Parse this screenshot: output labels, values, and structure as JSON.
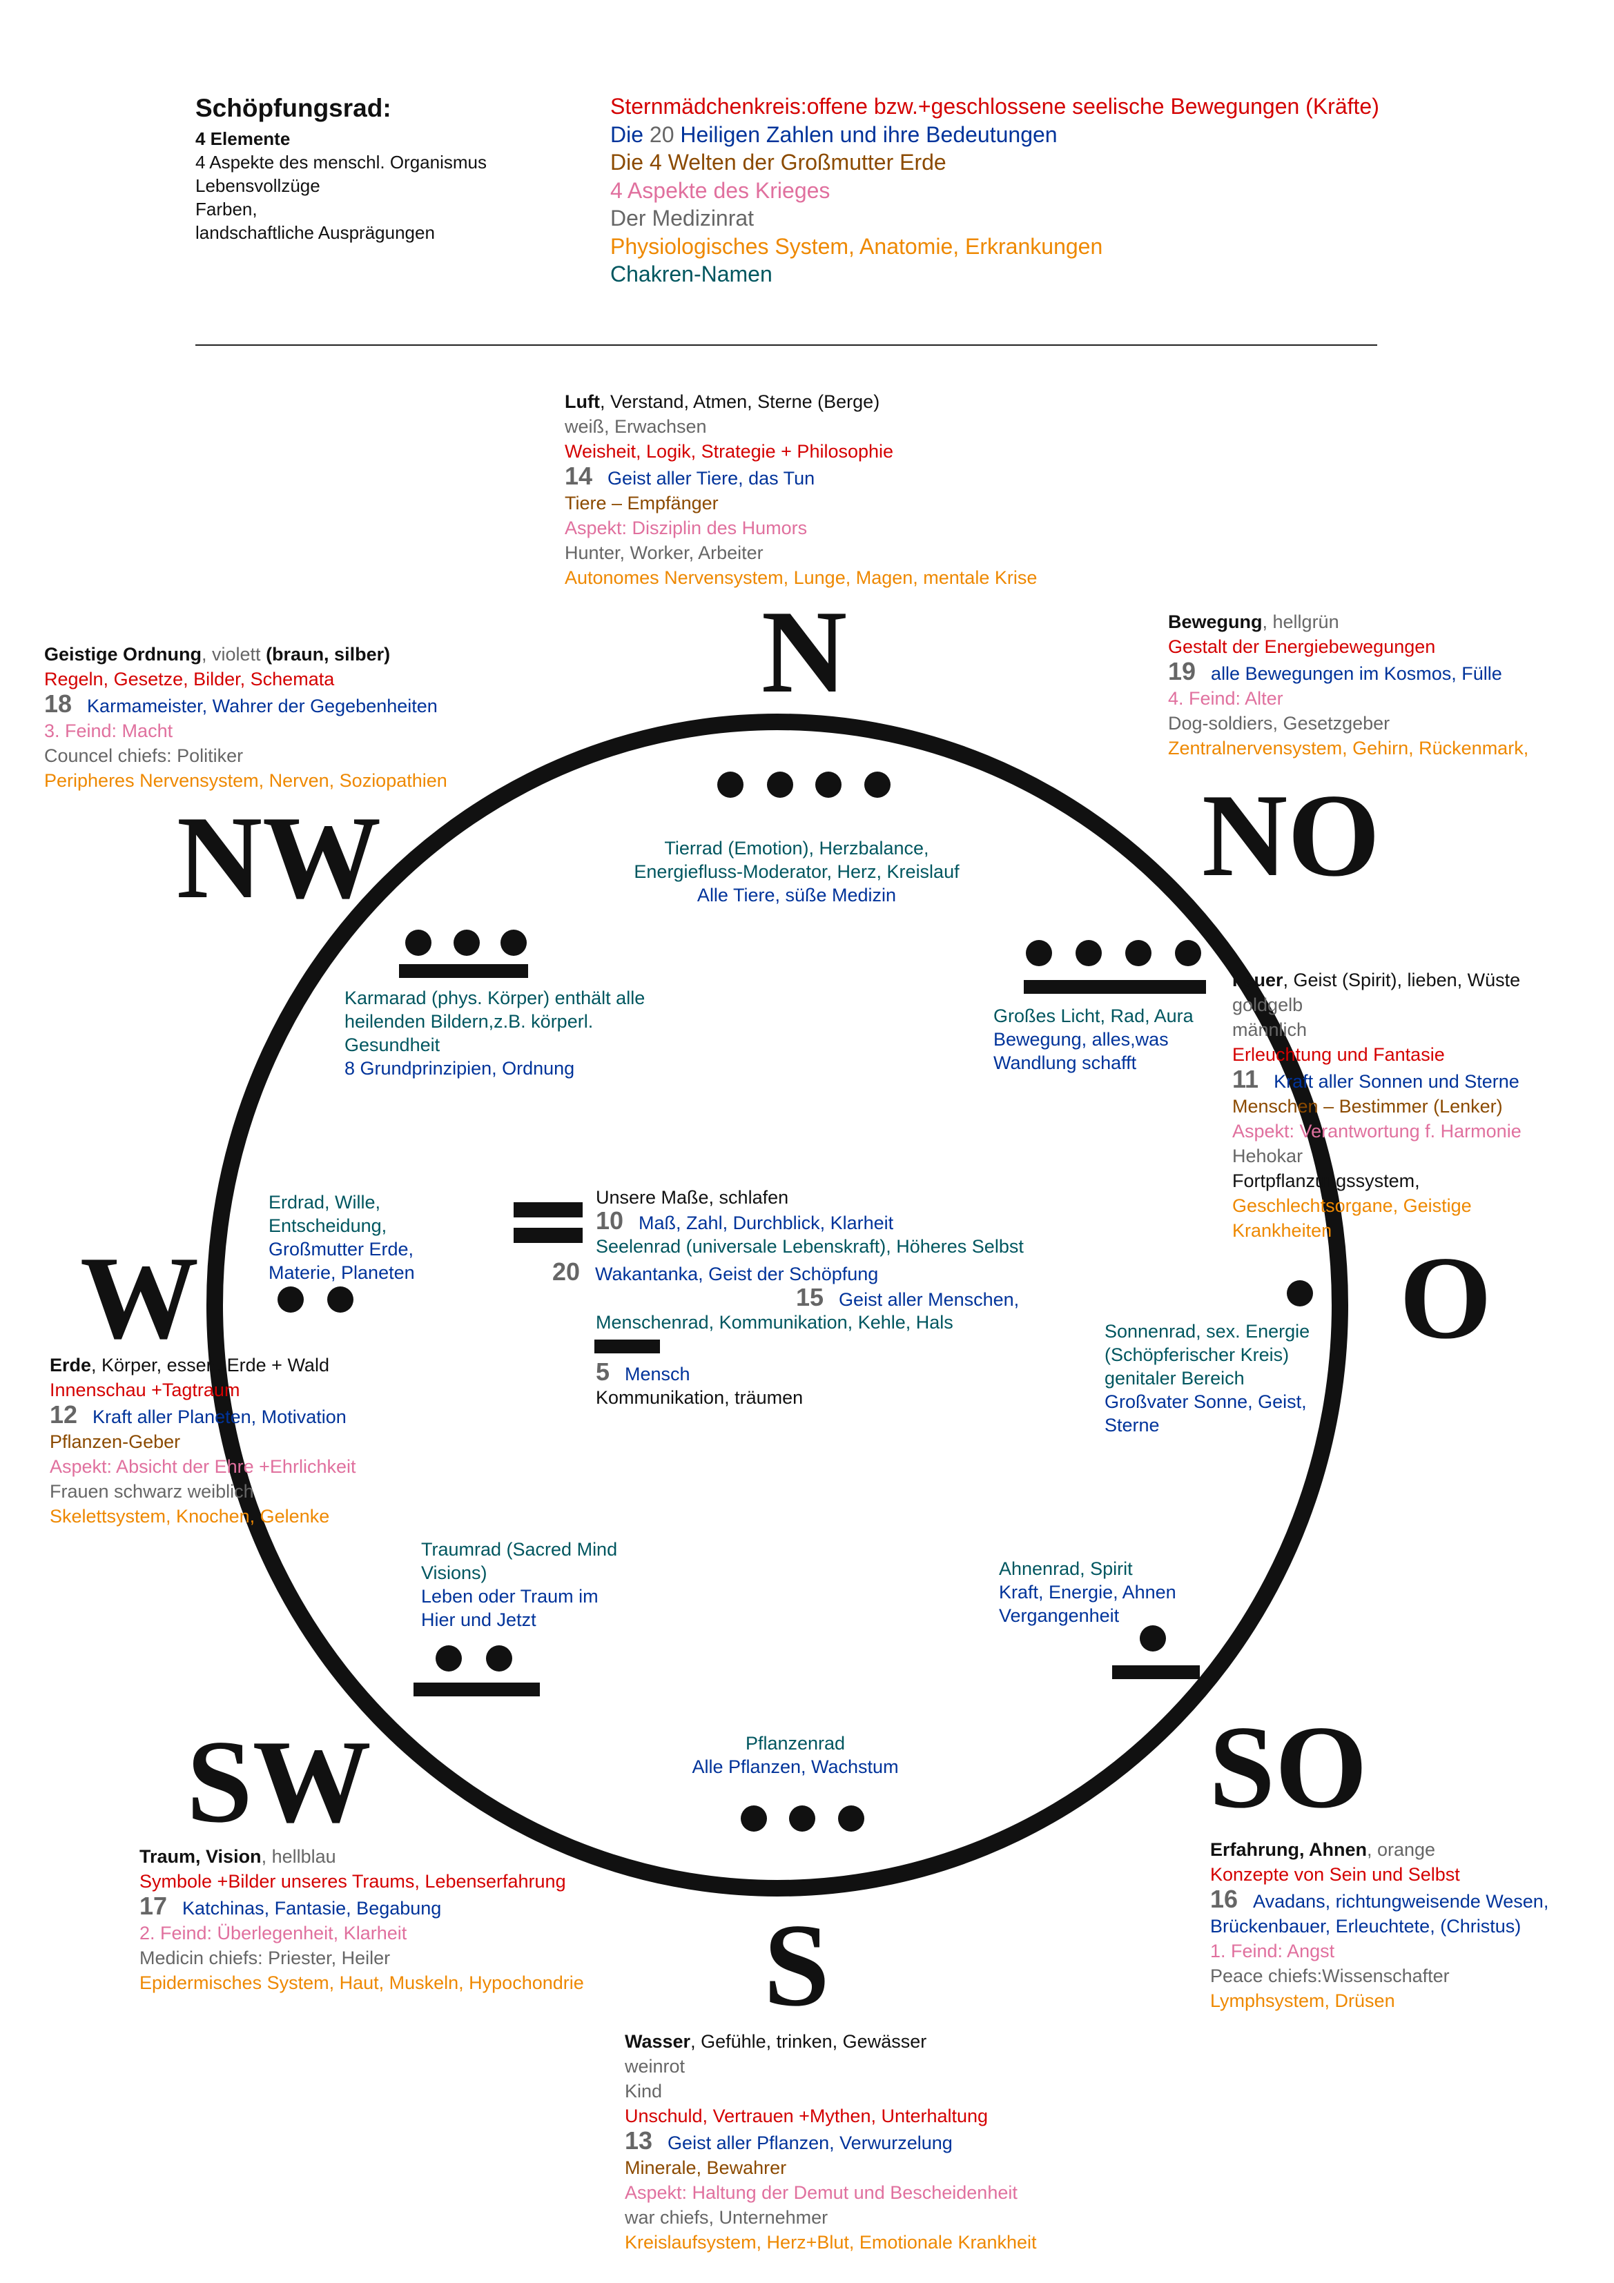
{
  "header": {
    "title": "Schöpfungsrad:",
    "left_lines": [
      "4 Elemente",
      "4 Aspekte des menschl.  Organismus",
      "Lebensvollzüge",
      "Farben,",
      "landschaftliche Ausprägungen"
    ],
    "legend": [
      [
        [
          "Sternmädchenkreis:offene bzw.+geschlossene seelische Bewegungen (Kräfte)",
          "r"
        ]
      ],
      [
        [
          "Die ",
          "b"
        ],
        [
          "20",
          "g"
        ],
        [
          " Heiligen Zahlen und ihre Bedeutungen",
          "b"
        ]
      ],
      [
        [
          "Die 4 Welten der Großmutter Erde",
          "br"
        ]
      ],
      [
        [
          "4 Aspekte des Krieges",
          "p"
        ]
      ],
      [
        [
          "Der Medizinrat",
          "g"
        ]
      ],
      [
        [
          "Physiologisches System, Anatomie, Erkrankungen",
          "o"
        ]
      ],
      [
        [
          "Chakren-Namen",
          "t"
        ]
      ]
    ]
  },
  "colors": {
    "k": "#111111",
    "g": "#666666",
    "r": "#d40000",
    "b": "#00339a",
    "br": "#8b4a00",
    "p": "#e0709e",
    "o": "#ee8800",
    "t": "#00565f"
  },
  "directions": {
    "n": "N",
    "nw": "NW",
    "no": "NO",
    "w": "W",
    "o": "O",
    "sw": "SW",
    "so": "SO",
    "s": "S"
  },
  "blocks": {
    "luft": [
      [
        [
          "Luft",
          "k",
          1
        ],
        [
          ", Verstand, Atmen, Sterne (Berge)",
          "k"
        ]
      ],
      [
        [
          "weiß, Erwachsen",
          "g"
        ]
      ],
      [
        [
          "Weisheit, Logik, Strategie + Philosophie",
          "r"
        ]
      ],
      [
        [
          "14",
          "n"
        ],
        [
          "Geist aller Tiere, das Tun",
          "b"
        ]
      ],
      [
        [
          "Tiere – Empfänger",
          "br"
        ]
      ],
      [
        [
          "Aspekt: Disziplin des Humors",
          "p"
        ]
      ],
      [
        [
          "Hunter, Worker, Arbeiter",
          "g"
        ]
      ],
      [
        [
          "Autonomes Nervensystem, Lunge, Magen, mentale Krise",
          "o"
        ]
      ]
    ],
    "geistige": [
      [
        [
          "Geistige Ordnung",
          "k",
          1
        ],
        [
          ", violett ",
          "g"
        ],
        [
          "(braun, silber)",
          "k",
          1
        ]
      ],
      [
        [
          "Regeln, Gesetze, Bilder, Schemata",
          "r"
        ]
      ],
      [
        [
          "18",
          "n"
        ],
        [
          "Karmameister, Wahrer der Gegebenheiten",
          "b"
        ]
      ],
      [
        [
          "3. Feind: Macht",
          "p"
        ]
      ],
      [
        [
          "Councel chiefs: Politiker",
          "g"
        ]
      ],
      [
        [
          "Peripheres Nervensystem, Nerven, Soziopathien",
          "o"
        ]
      ]
    ],
    "bewegung": [
      [
        [
          "Bewegung",
          "k",
          1
        ],
        [
          ", hellgrün",
          "g"
        ]
      ],
      [
        [
          "Gestalt der Energiebewegungen",
          "r"
        ]
      ],
      [
        [
          "19",
          "n"
        ],
        [
          "alle Bewegungen im Kosmos, Fülle",
          "b"
        ]
      ],
      [
        [
          "4. Feind: Alter",
          "p"
        ]
      ],
      [
        [
          "Dog-soldiers, Gesetzgeber",
          "g"
        ]
      ],
      [
        [
          "Zentralnervensystem, Gehirn, Rückenmark,",
          "o"
        ]
      ]
    ],
    "tierrad": [
      [
        [
          "Tierrad (Emotion), Herzbalance,",
          "t"
        ]
      ],
      [
        [
          "Energiefluss-Moderator, Herz, Kreislauf",
          "t"
        ]
      ],
      [
        [
          "Alle Tiere, süße Medizin",
          "b"
        ]
      ]
    ],
    "karmarad": [
      [
        [
          "Karmarad (phys. Körper) enthält alle",
          "t"
        ]
      ],
      [
        [
          "heilenden Bildern,z.B. körperl.",
          "t"
        ]
      ],
      [
        [
          "Gesundheit",
          "t"
        ]
      ],
      [
        [
          "8 Grundprinzipien, Ordnung",
          "b"
        ]
      ]
    ],
    "grosses": [
      [
        [
          "Großes Licht, Rad, Aura",
          "t"
        ]
      ],
      [
        [
          "Bewegung, alles,was",
          "b"
        ]
      ],
      [
        [
          "Wandlung schafft",
          "b"
        ]
      ]
    ],
    "feuer": [
      [
        [
          "Feuer",
          "k",
          1
        ],
        [
          ", Geist (Spirit), lieben, Wüste",
          "k"
        ]
      ],
      [
        [
          "goldgelb",
          "g"
        ]
      ],
      [
        [
          "männlich",
          "g"
        ]
      ],
      [
        [
          "Erleuchtung und Fantasie",
          "r"
        ]
      ],
      [
        [
          "11",
          "n"
        ],
        [
          "Kraft aller Sonnen und Sterne",
          "b"
        ]
      ],
      [
        [
          "Menschen – Bestimmer (Lenker)",
          "br"
        ]
      ],
      [
        [
          "Aspekt: Verantwortung f. Harmonie",
          "p"
        ]
      ],
      [
        [
          "Hehokar",
          "g"
        ]
      ],
      [
        [
          "Fortpflanzungssystem,",
          "k"
        ]
      ],
      [
        [
          "Geschlechtsorgane, Geistige",
          "o"
        ]
      ],
      [
        [
          "Krankheiten",
          "o"
        ]
      ]
    ],
    "erdrad": [
      [
        [
          "Erdrad, Wille,",
          "t"
        ]
      ],
      [
        [
          "Entscheidung,",
          "t"
        ]
      ],
      [
        [
          "Großmutter Erde,",
          "b"
        ]
      ],
      [
        [
          "Materie, Planeten",
          "b"
        ]
      ]
    ],
    "center_a": [
      [
        [
          "Unsere Maße, schlafen",
          "k"
        ]
      ],
      [
        [
          "10",
          "n"
        ],
        [
          "Maß, Zahl, Durchblick, Klarheit",
          "b"
        ]
      ],
      [
        [
          "Seelenrad (universale Lebenskraft), Höheres Selbst",
          "t"
        ]
      ]
    ],
    "center_b": [
      [
        [
          "20",
          "n"
        ],
        [
          "Wakantanka, Geist der Schöpfung",
          "b"
        ]
      ]
    ],
    "center_c": [
      [
        [
          "15",
          "n"
        ],
        [
          "Geist aller Menschen,",
          "b"
        ]
      ]
    ],
    "center_d": [
      [
        [
          "Menschenrad, Kommunikation, Kehle, Hals",
          "t"
        ]
      ]
    ],
    "center_e": [
      [
        [
          "5",
          "n"
        ],
        [
          "Mensch",
          "b"
        ]
      ],
      [
        [
          "Kommunikation, träumen",
          "k"
        ]
      ]
    ],
    "sonnenrad": [
      [
        [
          "Sonnenrad, sex. Energie",
          "t"
        ]
      ],
      [
        [
          "(Schöpferischer Kreis)",
          "t"
        ]
      ],
      [
        [
          "genitaler Bereich",
          "t"
        ]
      ],
      [
        [
          "Großvater Sonne, Geist,",
          "b"
        ]
      ],
      [
        [
          "Sterne",
          "b"
        ]
      ]
    ],
    "erde": [
      [
        [
          "Erde",
          "k",
          1
        ],
        [
          ", Körper, essen, Erde + Wald",
          "k"
        ]
      ],
      [
        [
          "Innenschau +Tagtraum",
          "r"
        ]
      ],
      [
        [
          "12",
          "n"
        ],
        [
          "Kraft aller Planeten, Motivation",
          "b"
        ]
      ],
      [
        [
          "Pflanzen-Geber",
          "br"
        ]
      ],
      [
        [
          "Aspekt: Absicht der Ehre +Ehrlichkeit",
          "p"
        ]
      ],
      [
        [
          "Frauen schwarz  weiblich",
          "g"
        ]
      ],
      [
        [
          "Skelettsystem, Knochen, Gelenke",
          "o"
        ]
      ]
    ],
    "traumrad": [
      [
        [
          "Traumrad (Sacred Mind",
          "t"
        ]
      ],
      [
        [
          "Visions)",
          "t"
        ]
      ],
      [
        [
          "Leben oder Traum im",
          "b"
        ]
      ],
      [
        [
          "Hier und Jetzt",
          "b"
        ]
      ]
    ],
    "ahnenrad": [
      [
        [
          "Ahnenrad, Spirit",
          "t"
        ]
      ],
      [
        [
          "Kraft, Energie, Ahnen",
          "b"
        ]
      ],
      [
        [
          "Vergangenheit",
          "b"
        ]
      ]
    ],
    "pflanzenrad": [
      [
        [
          "Pflanzenrad",
          "t"
        ]
      ],
      [
        [
          "Alle Pflanzen, Wachstum",
          "b"
        ]
      ]
    ],
    "traum": [
      [
        [
          "Traum, Vision",
          "k",
          1
        ],
        [
          ", hellblau",
          "g"
        ]
      ],
      [
        [
          "Symbole +Bilder unseres Traums, Lebenserfahrung",
          "r"
        ]
      ],
      [
        [
          "17",
          "n"
        ],
        [
          "Katchinas, Fantasie, Begabung",
          "b"
        ]
      ],
      [
        [
          "2. Feind: Überlegenheit, Klarheit",
          "p"
        ]
      ],
      [
        [
          "Medicin chiefs: Priester, Heiler",
          "g"
        ]
      ],
      [
        [
          "Epidermisches System, Haut, Muskeln, Hypochondrie",
          "o"
        ]
      ]
    ],
    "erfahrung": [
      [
        [
          "Erfahrung, Ahnen",
          "k",
          1
        ],
        [
          ", orange",
          "g"
        ]
      ],
      [
        [
          "Konzepte von Sein und Selbst",
          "r"
        ]
      ],
      [
        [
          "16",
          "n"
        ],
        [
          "Avadans, richtungweisende Wesen,",
          "b"
        ]
      ],
      [
        [
          "Brückenbauer, Erleuchtete, (Christus)",
          "b"
        ]
      ],
      [
        [
          "1. Feind: Angst",
          "p"
        ]
      ],
      [
        [
          "Peace chiefs:Wissenschafter",
          "g"
        ]
      ],
      [
        [
          "Lymphsystem, Drüsen",
          "o"
        ]
      ]
    ],
    "wasser": [
      [
        [
          "Wasser",
          "k",
          1
        ],
        [
          ", Gefühle, trinken, Gewässer",
          "k"
        ]
      ],
      [
        [
          "weinrot",
          "g"
        ]
      ],
      [
        [
          "Kind",
          "g"
        ]
      ],
      [
        [
          "Unschuld, Vertrauen +Mythen, Unterhaltung",
          "r"
        ]
      ],
      [
        [
          "13",
          "n"
        ],
        [
          "Geist aller Pflanzen, Verwurzelung",
          "b"
        ]
      ],
      [
        [
          "Minerale, Bewahrer",
          "br"
        ]
      ],
      [
        [
          "Aspekt: Haltung der Demut und Bescheidenheit",
          "p"
        ]
      ],
      [
        [
          "war chiefs, Unternehmer",
          "g"
        ]
      ],
      [
        [
          "Kreislaufsystem, Herz+Blut, Emotionale Krankheit",
          "o"
        ]
      ]
    ]
  }
}
